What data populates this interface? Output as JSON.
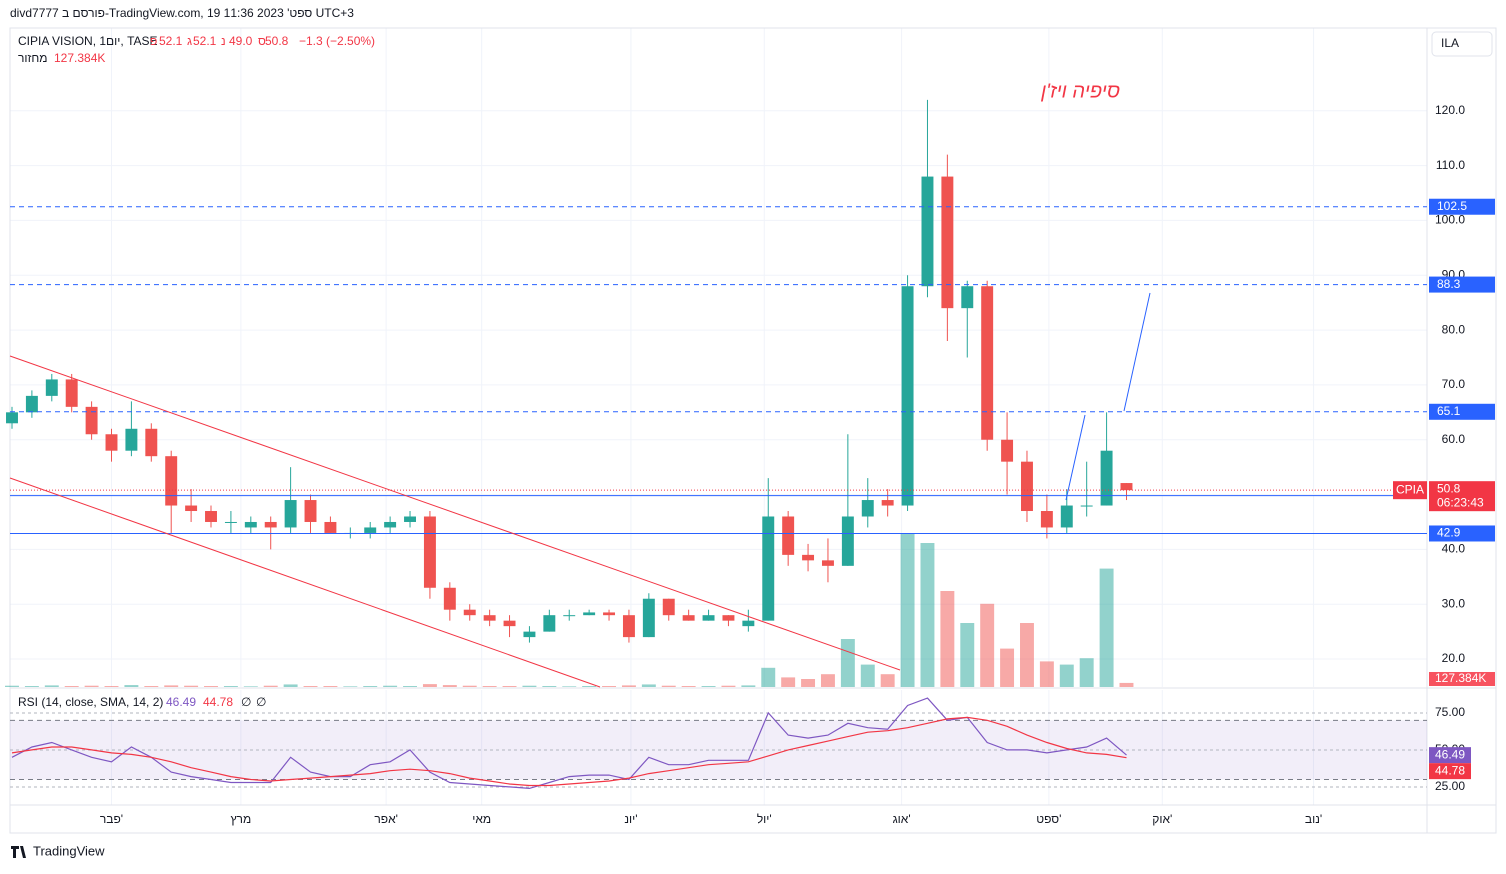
{
  "header": {
    "published": "divd7777 פורסם ב-TradingView.com, 19 ספט' 2023 11:36 UTC+3",
    "symbol": "CIPIA VISION, 1יום, TASE",
    "open_label": "פ",
    "open": "52.1",
    "high_label": "ג",
    "high": "52.1",
    "low_label": "נ",
    "low": "49.0",
    "close_label": "ס",
    "close": "50.8",
    "change": "−1.3 (−2.50%)",
    "volume_label": "מחזור",
    "volume": "127.384K",
    "currency": "ILA",
    "annotation": "סיפיה ויז'ן",
    "ticker": "CPIA",
    "countdown": "06:23:43",
    "brand": "TradingView"
  },
  "chart_data": {
    "type": "candlestick",
    "title": "CIPIA VISION",
    "xlim": [
      -0.1,
      71.1
    ],
    "xticks": [
      {
        "value": 5.0,
        "label": "פבר'"
      },
      {
        "value": 11.5,
        "label": "מרץ"
      },
      {
        "value": 18.8,
        "label": "אפר'"
      },
      {
        "value": 23.6,
        "label": "מאי"
      },
      {
        "value": 31.1,
        "label": "יונ'"
      },
      {
        "value": 37.8,
        "label": "יול'"
      },
      {
        "value": 44.7,
        "label": "אוג'"
      },
      {
        "value": 52.1,
        "label": "ספט'"
      },
      {
        "value": 57.8,
        "label": "אוק'"
      },
      {
        "value": 65.4,
        "label": "נוב'"
      }
    ],
    "ylim": [
      14.9,
      135.1
    ],
    "yticks": [
      {
        "value": 20,
        "label": "20.0"
      },
      {
        "value": 30,
        "label": "30.0"
      },
      {
        "value": 40,
        "label": "40.0"
      },
      {
        "value": 50,
        "label": "50.0"
      },
      {
        "value": 60,
        "label": "60.0"
      },
      {
        "value": 70,
        "label": "70.0"
      },
      {
        "value": 80,
        "label": "80.0"
      },
      {
        "value": 90,
        "label": "90.0"
      },
      {
        "value": 100,
        "label": "100.0"
      },
      {
        "value": 110,
        "label": "110.0"
      },
      {
        "value": 120,
        "label": "120.0"
      }
    ],
    "grid": true,
    "up_color": "#26a69a",
    "down_color": "#ef5350",
    "candles": [
      [
        63,
        66,
        62,
        65
      ],
      [
        65,
        69,
        64,
        68
      ],
      [
        68,
        72,
        67,
        71
      ],
      [
        71,
        72,
        65,
        66
      ],
      [
        66,
        67,
        60,
        61
      ],
      [
        61,
        62,
        56,
        58
      ],
      [
        58,
        67,
        57,
        62
      ],
      [
        62,
        63,
        56,
        57
      ],
      [
        57,
        58,
        43,
        48
      ],
      [
        48,
        51,
        45,
        47
      ],
      [
        47,
        48,
        44,
        45
      ],
      [
        45,
        47,
        43,
        45
      ],
      [
        44,
        46,
        43,
        45
      ],
      [
        45,
        46,
        40,
        44
      ],
      [
        44,
        55,
        43,
        49
      ],
      [
        49,
        50,
        43,
        45
      ],
      [
        45,
        46,
        43,
        43
      ],
      [
        43,
        44,
        42,
        43
      ],
      [
        43,
        45,
        42,
        44
      ],
      [
        44,
        46,
        43,
        45
      ],
      [
        45,
        47,
        44,
        46
      ],
      [
        46,
        47,
        31,
        33
      ],
      [
        33,
        34,
        27,
        29
      ],
      [
        29,
        30,
        27,
        28
      ],
      [
        28,
        29,
        26,
        27
      ],
      [
        27,
        28,
        24,
        26
      ],
      [
        24,
        26,
        23,
        25
      ],
      [
        25,
        29,
        25,
        28
      ],
      [
        28,
        29,
        27,
        28
      ],
      [
        28,
        29,
        28,
        28.5
      ],
      [
        28.5,
        29,
        27,
        28
      ],
      [
        28,
        29,
        23,
        24
      ],
      [
        24,
        32,
        24,
        31
      ],
      [
        31,
        31,
        27,
        28
      ],
      [
        28,
        29,
        27,
        27
      ],
      [
        27,
        29,
        27,
        28
      ],
      [
        28,
        28,
        26,
        27
      ],
      [
        26,
        29,
        25,
        27
      ],
      [
        27,
        53,
        27,
        46
      ],
      [
        46,
        47,
        37,
        39
      ],
      [
        39,
        41,
        36,
        38
      ],
      [
        38,
        42,
        34,
        37
      ],
      [
        37,
        61,
        37,
        46
      ],
      [
        46,
        53,
        44,
        49
      ],
      [
        49,
        51,
        46,
        48
      ],
      [
        48,
        90,
        47,
        88
      ],
      [
        88,
        122,
        86,
        108
      ],
      [
        108,
        112,
        78,
        84
      ],
      [
        84,
        89,
        75,
        88
      ],
      [
        88,
        89,
        58,
        60
      ],
      [
        60,
        65,
        50,
        56
      ],
      [
        56,
        58,
        45,
        47
      ],
      [
        47,
        50,
        42,
        44
      ],
      [
        44,
        51,
        43,
        48
      ],
      [
        48,
        56,
        46,
        48
      ],
      [
        48,
        65,
        48,
        58
      ],
      [
        52.1,
        52.1,
        49,
        50.8
      ]
    ],
    "volume": [
      40,
      30,
      50,
      30,
      40,
      30,
      60,
      30,
      50,
      40,
      30,
      30,
      20,
      40,
      80,
      30,
      30,
      20,
      30,
      40,
      30,
      90,
      60,
      40,
      30,
      30,
      40,
      30,
      20,
      30,
      30,
      50,
      80,
      40,
      30,
      30,
      40,
      50,
      600,
      300,
      250,
      400,
      1500,
      700,
      400,
      4800,
      4500,
      3000,
      2000,
      2600,
      1200,
      2000,
      800,
      700,
      900,
      3700,
      127.384
    ],
    "volume_ylim": [
      0,
      5000
    ],
    "levels": [
      {
        "value": 102.5,
        "color": "#2962ff",
        "style": "dashed"
      },
      {
        "value": 88.3,
        "color": "#2962ff",
        "style": "dashed"
      },
      {
        "value": 65.1,
        "color": "#2962ff",
        "style": "dashed"
      },
      {
        "value": 49.8,
        "color": "#2962ff",
        "style": "solid"
      },
      {
        "value": 42.9,
        "color": "#2962ff",
        "style": "solid"
      }
    ],
    "last_price": 50.8,
    "rsi": {
      "title": "RSI (14, close, SMA, 14, 2)",
      "value": "46.49",
      "sma": "44.78",
      "na1": "∅",
      "na2": "∅",
      "color": "#7e57c2",
      "sma_color": "#f23645",
      "ylim": [
        12.8,
        90.5
      ],
      "yticks": [
        {
          "value": 25,
          "label": "25.00"
        },
        {
          "value": 50,
          "label": "50.00"
        },
        {
          "value": 75,
          "label": "75.00"
        }
      ],
      "bands": [
        30,
        70
      ],
      "values": [
        45,
        52,
        55,
        50,
        45,
        42,
        52,
        45,
        35,
        32,
        30,
        28,
        28,
        28,
        45,
        35,
        32,
        32,
        40,
        42,
        50,
        35,
        28,
        27,
        26,
        25,
        24,
        28,
        32,
        33,
        33,
        30,
        45,
        40,
        40,
        43,
        43,
        43,
        75,
        60,
        58,
        60,
        68,
        65,
        64,
        80,
        85,
        70,
        72,
        55,
        50,
        50,
        48,
        50,
        52,
        58,
        46.49
      ],
      "sma_values": [
        48,
        50,
        52,
        52,
        50,
        48,
        47,
        45,
        42,
        38,
        35,
        32,
        30,
        29,
        30,
        31,
        32,
        33,
        34,
        36,
        37,
        36,
        34,
        31,
        29,
        27,
        26,
        26,
        27,
        28,
        29,
        31,
        34,
        36,
        38,
        40,
        41,
        42,
        46,
        50,
        53,
        56,
        59,
        62,
        63,
        65,
        68,
        71,
        72,
        70,
        66,
        60,
        55,
        51,
        48,
        47,
        44.78
      ]
    }
  }
}
